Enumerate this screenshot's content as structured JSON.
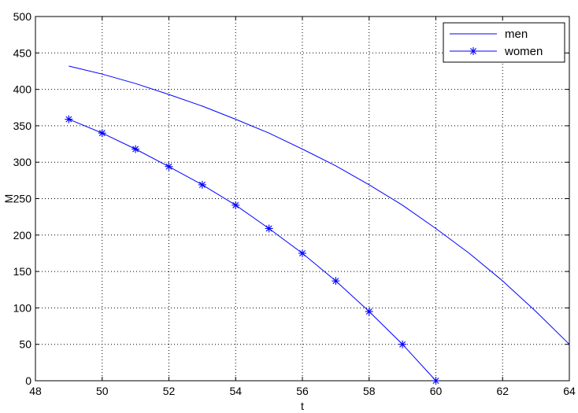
{
  "chart_data": {
    "type": "line",
    "title": "",
    "xlabel": "t",
    "ylabel": "M",
    "xlim": [
      48,
      64
    ],
    "ylim": [
      0,
      500
    ],
    "xticks": [
      48,
      50,
      52,
      54,
      56,
      58,
      60,
      62,
      64
    ],
    "yticks": [
      0,
      50,
      100,
      150,
      200,
      250,
      300,
      350,
      400,
      450,
      500
    ],
    "grid": true,
    "legend_position": "top-right",
    "series": [
      {
        "name": "men",
        "color": "#0000ff",
        "marker": "none",
        "x": [
          49,
          50,
          51,
          52,
          53,
          54,
          55,
          56,
          57,
          58,
          59,
          60,
          61,
          62,
          63,
          64
        ],
        "y": [
          432,
          421,
          408,
          393,
          377,
          359,
          340,
          318,
          295,
          269,
          241,
          209,
          175,
          137,
          95,
          50
        ]
      },
      {
        "name": "women",
        "color": "#0000ff",
        "marker": "asterisk",
        "x": [
          49,
          50,
          51,
          52,
          53,
          54,
          55,
          56,
          57,
          58,
          59,
          60
        ],
        "y": [
          359,
          340,
          318,
          294,
          269,
          241,
          209,
          175,
          137,
          95,
          50,
          0
        ]
      }
    ]
  }
}
